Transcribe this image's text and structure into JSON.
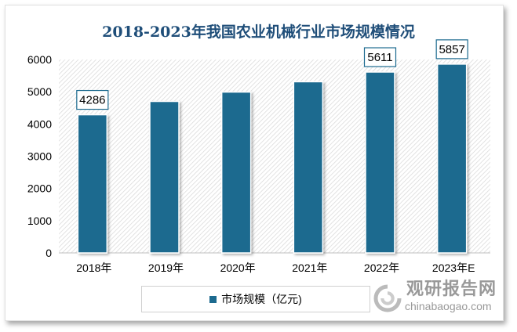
{
  "chart_data": {
    "type": "bar",
    "title": "2018-2023年我国农业机械行业市场规模情况",
    "categories": [
      "2018年",
      "2019年",
      "2020年",
      "2021年",
      "2022年",
      "2023年E"
    ],
    "series": [
      {
        "name": "市场规模（亿元)",
        "values": [
          4286,
          4700,
          4990,
          5310,
          5611,
          5857
        ]
      }
    ],
    "data_labels": [
      "4286",
      "",
      "",
      "",
      "5611",
      "5857"
    ],
    "yticks": [
      "0",
      "1000",
      "2000",
      "3000",
      "4000",
      "5000",
      "6000"
    ],
    "ylim": [
      0,
      6000
    ],
    "xlabel": "",
    "ylabel": "",
    "legend_position": "bottom",
    "bar_color": "#1c6a8f",
    "background": "diagonal-hatch"
  },
  "watermark": {
    "cn": "观研报告网",
    "en": "chinabaogao.com"
  }
}
